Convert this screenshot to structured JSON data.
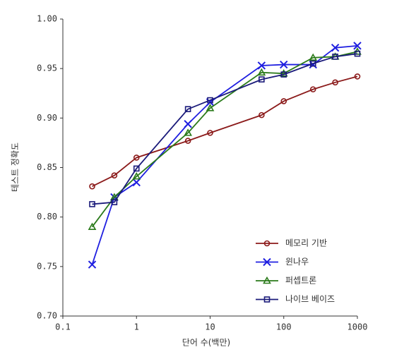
{
  "chart_data": {
    "type": "line",
    "xlabel": "단어 수(백만)",
    "ylabel": "테스트 정확도",
    "x": [
      0.25,
      0.5,
      1,
      5,
      10,
      50,
      100,
      250,
      500,
      1000
    ],
    "series": [
      {
        "name": "메모리 기반",
        "color": "#8b1a1a",
        "marker": "circle",
        "values": [
          0.831,
          0.842,
          0.86,
          0.877,
          0.885,
          0.903,
          0.917,
          0.929,
          0.936,
          0.942
        ]
      },
      {
        "name": "윈나우",
        "color": "#1f1fe0",
        "marker": "x",
        "values": [
          0.752,
          0.82,
          0.835,
          0.894,
          0.916,
          0.953,
          0.954,
          0.954,
          0.971,
          0.973
        ]
      },
      {
        "name": "퍼셉트론",
        "color": "#2a7a1a",
        "marker": "triangle",
        "values": [
          0.79,
          0.82,
          0.841,
          0.885,
          0.91,
          0.946,
          0.945,
          0.961,
          0.962,
          0.967
        ]
      },
      {
        "name": "나이브 베이즈",
        "color": "#1a1a7a",
        "marker": "square",
        "values": [
          0.813,
          0.815,
          0.849,
          0.909,
          0.918,
          0.939,
          0.944,
          0.955,
          0.962,
          0.965
        ]
      }
    ],
    "xscale": "log",
    "xlim": [
      0.1,
      1000
    ],
    "xticks": [
      0.1,
      1,
      10,
      100,
      1000
    ],
    "ylim": [
      0.7,
      1.0
    ],
    "yticks": [
      {
        "value": 0.7,
        "label": "0.70"
      },
      0.75,
      {
        "value": 0.8,
        "label": "0.80"
      },
      0.85,
      {
        "value": 0.9,
        "label": "0.90"
      },
      0.95,
      {
        "value": 1.0,
        "label": "1.00"
      }
    ],
    "grid": false,
    "legend": "lower right"
  }
}
